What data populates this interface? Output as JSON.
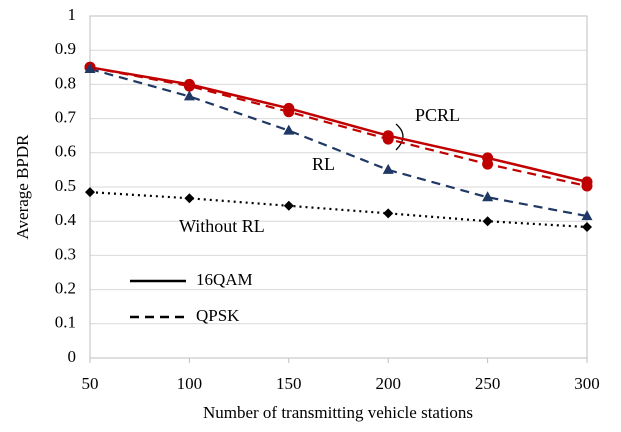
{
  "chart_data": {
    "type": "line",
    "xlabel": "Number of transmitting vehicle stations",
    "ylabel": "Average BPDR",
    "x": [
      50,
      100,
      150,
      200,
      250,
      300
    ],
    "xlim": [
      50,
      300
    ],
    "xticks": [
      50,
      100,
      150,
      200,
      250,
      300
    ],
    "ylim": [
      0,
      1
    ],
    "yticks": [
      0,
      0.1,
      0.2,
      0.3,
      0.4,
      0.5,
      0.6,
      0.7,
      0.8,
      0.9,
      1
    ],
    "grid": true,
    "series": [
      {
        "color": "#c00000",
        "dash": "solid",
        "marker": "circle",
        "values": [
          0.85,
          0.8,
          0.73,
          0.65,
          0.585,
          0.515
        ]
      },
      {
        "color": "#c00000",
        "dash": "dashed",
        "marker": "circle",
        "values": [
          0.85,
          0.795,
          0.72,
          0.64,
          0.567,
          0.503
        ]
      },
      {
        "color": "#1f3864",
        "dash": "dashed",
        "marker": "triangle",
        "values": [
          0.845,
          0.765,
          0.665,
          0.55,
          0.47,
          0.415
        ]
      },
      {
        "color": "#000000",
        "dash": "dotted",
        "marker": "diamond",
        "values": [
          0.485,
          0.467,
          0.445,
          0.423,
          0.4,
          0.383
        ]
      }
    ],
    "legend": [
      {
        "label": "16QAM",
        "dash": "solid"
      },
      {
        "label": "QPSK",
        "dash": "dashed"
      }
    ],
    "annotations": [
      "PCRL",
      "RL",
      "Without RL"
    ]
  }
}
